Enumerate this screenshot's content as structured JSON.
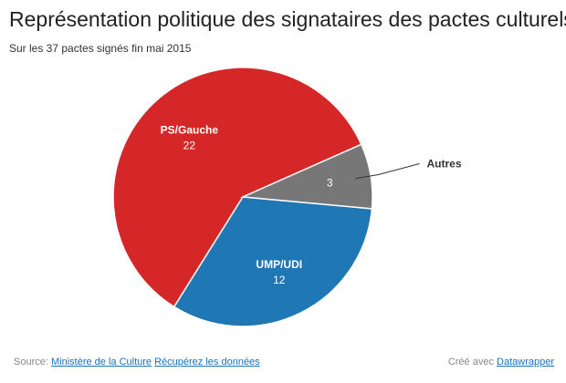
{
  "header": {
    "title": "Représentation politique des signataires des pactes culturels",
    "subtitle": "Sur les 37 pactes signés fin mai 2015"
  },
  "chart_data": {
    "type": "pie",
    "title": "Représentation politique des signataires des pactes culturels",
    "subtitle": "Sur les 37 pactes signés fin mai 2015",
    "slices": [
      {
        "label": "PS/Gauche",
        "value": 22,
        "color": "#d62728"
      },
      {
        "label": "Autres",
        "value": 3,
        "color": "#777777"
      },
      {
        "label": "UMP/UDI",
        "value": 12,
        "color": "#1f77b4"
      }
    ],
    "total": 37,
    "legend": "none"
  },
  "footer": {
    "source_prefix": "Source:",
    "source_link": "Ministère de la Culture",
    "download_link": "Récupérez les données",
    "credit_prefix": "Créé avec",
    "credit_link": "Datawrapper"
  },
  "colors": {
    "link": "#1a73b8",
    "slice_border": "#ffffff"
  }
}
